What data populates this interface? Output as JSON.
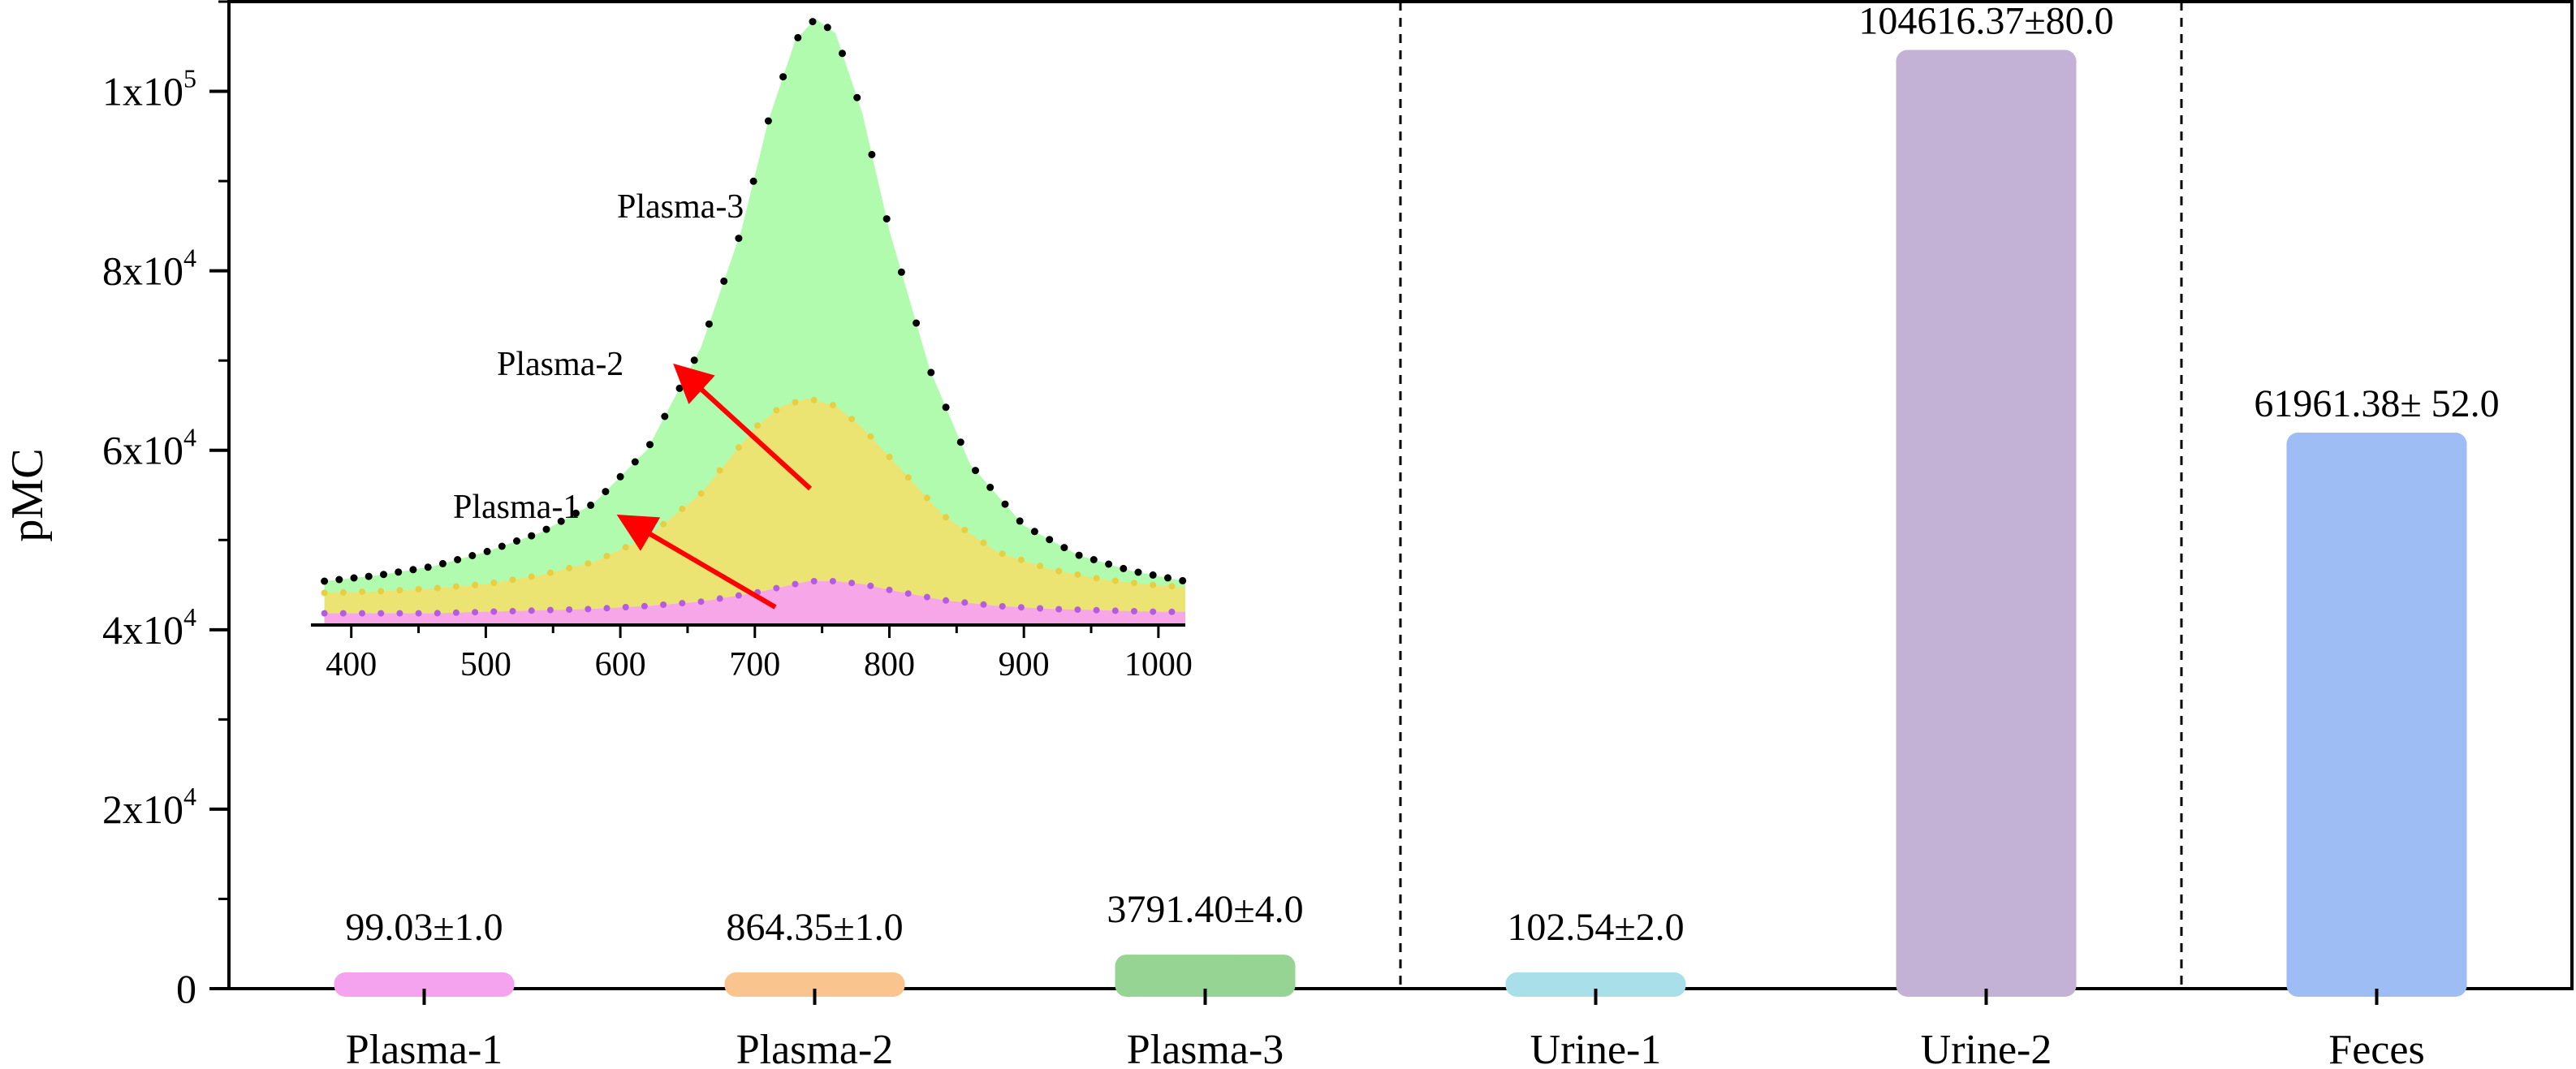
{
  "chart_data": {
    "type": "bar",
    "ylabel": "pMC",
    "ylim": [
      0,
      110000
    ],
    "y_ticks": [
      {
        "value": 0,
        "mantissa": "0",
        "exponent": ""
      },
      {
        "value": 20000,
        "mantissa": "2x10",
        "exponent": "4"
      },
      {
        "value": 40000,
        "mantissa": "4x10",
        "exponent": "4"
      },
      {
        "value": 60000,
        "mantissa": "6x10",
        "exponent": "4"
      },
      {
        "value": 80000,
        "mantissa": "8x10",
        "exponent": "4"
      },
      {
        "value": 100000,
        "mantissa": "1x10",
        "exponent": "5"
      }
    ],
    "categories": [
      "Plasma-1",
      "Plasma-2",
      "Plasma-3",
      "Urine-1",
      "Urine-2",
      "Feces"
    ],
    "values": [
      99.03,
      864.35,
      3791.4,
      102.54,
      104616.37,
      61961.38
    ],
    "errors": [
      1.0,
      1.0,
      4.0,
      2.0,
      80.0,
      52.0
    ],
    "value_labels": [
      "99.03±1.0",
      "864.35±1.0",
      "3791.40±4.0",
      "102.54±2.0",
      "104616.37±80.0",
      "61961.38± 52.0"
    ],
    "bar_colors": [
      "#f5a3ee",
      "#f9c48d",
      "#96d494",
      "#a9dfe9",
      "#c3b2d6",
      "#9dbdf4"
    ],
    "group_separators_after": [
      "Plasma-3",
      "Urine-2"
    ],
    "grid": false,
    "inset": {
      "type": "area",
      "x_ticks": [
        400,
        500,
        600,
        700,
        800,
        900,
        1000
      ],
      "xlim": [
        370,
        1020
      ],
      "series": [
        {
          "name": "Plasma-1",
          "color": "#f7a6e8",
          "marker_color": "#b35ce0",
          "x": [
            380,
            420,
            460,
            500,
            540,
            580,
            620,
            660,
            700,
            720,
            740,
            760,
            780,
            800,
            840,
            880,
            920,
            960,
            1000,
            1020
          ],
          "y": [
            0.8,
            0.8,
            0.8,
            0.9,
            1.0,
            1.1,
            1.3,
            1.6,
            2.2,
            2.6,
            3.0,
            3.0,
            2.8,
            2.4,
            1.7,
            1.3,
            1.1,
            1.0,
            0.9,
            0.9
          ]
        },
        {
          "name": "Plasma-2",
          "color": "#ece472",
          "marker_color": "#e6cf43",
          "x": [
            380,
            420,
            460,
            500,
            540,
            580,
            620,
            660,
            700,
            720,
            740,
            760,
            780,
            800,
            840,
            880,
            920,
            960,
            1000,
            1020
          ],
          "y": [
            2.2,
            2.3,
            2.5,
            2.8,
            3.4,
            4.3,
            6.0,
            9.0,
            13.5,
            15.0,
            15.5,
            15.0,
            13.5,
            11.5,
            7.5,
            5.0,
            3.8,
            3.1,
            2.7,
            2.6
          ]
        },
        {
          "name": "Plasma-3",
          "color": "#b1fbae",
          "marker_color": "#000000",
          "x": [
            380,
            420,
            460,
            500,
            540,
            580,
            620,
            660,
            690,
            710,
            730,
            745,
            760,
            780,
            800,
            830,
            860,
            900,
            940,
            980,
            1020
          ],
          "y": [
            3.0,
            3.4,
            4.0,
            5.0,
            6.3,
            8.3,
            12.0,
            19.0,
            27.0,
            34.5,
            40.0,
            41.5,
            40.5,
            35.0,
            27.0,
            17.5,
            11.0,
            6.8,
            4.8,
            3.7,
            3.0
          ]
        }
      ],
      "annotations": [
        {
          "text": "Plasma-3",
          "arrow": false
        },
        {
          "text": "Plasma-2",
          "arrow": true,
          "arrow_color": "#ff0000"
        },
        {
          "text": "Plasma-1",
          "arrow": true,
          "arrow_color": "#ff0000"
        }
      ]
    }
  }
}
